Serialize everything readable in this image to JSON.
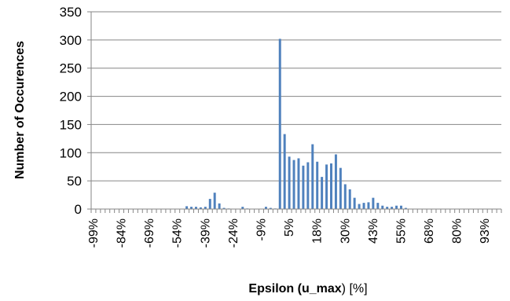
{
  "chart_data": {
    "type": "bar",
    "xlabel_bold": "Epsilon (u_max",
    "xlabel_rest": ") [%]",
    "ylabel": "Number of Occurences",
    "ylim": [
      0,
      350
    ],
    "yticks": [
      "0",
      "50",
      "100",
      "150",
      "200",
      "250",
      "300",
      "350"
    ],
    "grid": true,
    "bar_color": "#4F81BD",
    "x_tick_labels": [
      {
        "index": 0,
        "label": "-99%"
      },
      {
        "index": 6,
        "label": "-84%"
      },
      {
        "index": 12,
        "label": "-69%"
      },
      {
        "index": 18,
        "label": "-54%"
      },
      {
        "index": 24,
        "label": "-39%"
      },
      {
        "index": 30,
        "label": "-24%"
      },
      {
        "index": 36,
        "label": "-9%"
      },
      {
        "index": 42,
        "label": "5%"
      },
      {
        "index": 48,
        "label": "18%"
      },
      {
        "index": 54,
        "label": "30%"
      },
      {
        "index": 60,
        "label": "43%"
      },
      {
        "index": 66,
        "label": "55%"
      },
      {
        "index": 72,
        "label": "68%"
      },
      {
        "index": 78,
        "label": "80%"
      },
      {
        "index": 84,
        "label": "93%"
      }
    ],
    "values": [
      0,
      0,
      0,
      0,
      0,
      0,
      0,
      0,
      0,
      0,
      0,
      0,
      0,
      0,
      0,
      0,
      0,
      0,
      0,
      0,
      5,
      4,
      4,
      3,
      4,
      18,
      29,
      10,
      2,
      1,
      0,
      0,
      4,
      1,
      0,
      0,
      0,
      4,
      2,
      1,
      302,
      133,
      93,
      87,
      90,
      77,
      83,
      115,
      84,
      57,
      79,
      81,
      97,
      73,
      44,
      35,
      20,
      9,
      11,
      12,
      20,
      11,
      6,
      4,
      4,
      6,
      6,
      2,
      0,
      0,
      0,
      0,
      0,
      0,
      0,
      0,
      0,
      0,
      0,
      0,
      0,
      0,
      0,
      0,
      0,
      0,
      0,
      0
    ]
  }
}
